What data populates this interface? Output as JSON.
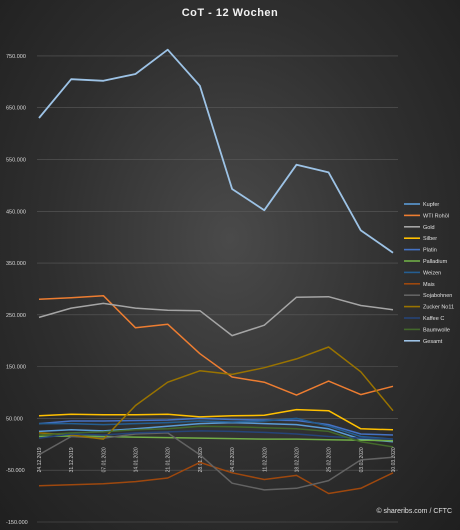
{
  "chart_data": {
    "type": "line",
    "title": "CoT - 12 Wochen",
    "credit": "© shareribs.com / CFTC",
    "ylim": [
      -150000,
      800000
    ],
    "yticks": [
      "750.000",
      "650.000",
      "550.000",
      "450.000",
      "350.000",
      "250.000",
      "150.000",
      "50.000",
      "-50.000",
      "-150.000"
    ],
    "ytick_values": [
      750000,
      650000,
      550000,
      450000,
      350000,
      250000,
      150000,
      50000,
      -50000,
      -150000
    ],
    "grid": true,
    "legend_position": "right",
    "x": [
      "24.12.2019",
      "31.12.2019",
      "07.01.2020",
      "14.01.2020",
      "21.01.2020",
      "28.01.2020",
      "04.02.2020",
      "11.02.2020",
      "18.02.2020",
      "25.02.2020",
      "03.03.2020",
      "10.03.2020"
    ],
    "series": [
      {
        "name": "Kupfer",
        "color": "#5b9bd5",
        "values": [
          25000,
          28000,
          26000,
          30000,
          35000,
          40000,
          42000,
          40000,
          38000,
          30000,
          10000,
          5000
        ]
      },
      {
        "name": "WTI Rohöl",
        "color": "#ed7d31",
        "values": [
          280000,
          283000,
          287000,
          225000,
          232000,
          175000,
          130000,
          120000,
          95000,
          122000,
          96000,
          112000
        ]
      },
      {
        "name": "Gold",
        "color": "#a5a5a5",
        "values": [
          245000,
          263000,
          272000,
          263000,
          259000,
          258000,
          210000,
          230000,
          284000,
          285000,
          268000,
          260000
        ]
      },
      {
        "name": "Silber",
        "color": "#ffc000",
        "values": [
          55000,
          58000,
          57000,
          57000,
          58000,
          53000,
          55000,
          56000,
          67000,
          65000,
          30000,
          28000
        ]
      },
      {
        "name": "Platin",
        "color": "#4472c4",
        "values": [
          40000,
          45000,
          45000,
          46000,
          47000,
          50000,
          48000,
          47000,
          46000,
          38000,
          20000,
          18000
        ]
      },
      {
        "name": "Palladium",
        "color": "#70ad47",
        "values": [
          15000,
          16000,
          15000,
          14000,
          13000,
          12000,
          11000,
          10000,
          10000,
          9000,
          8000,
          7000
        ]
      },
      {
        "name": "Weizen",
        "color": "#255e91",
        "values": [
          40000,
          40000,
          38000,
          40000,
          42000,
          45000,
          43000,
          45000,
          50000,
          35000,
          15000,
          10000
        ]
      },
      {
        "name": "Mais",
        "color": "#9e480e",
        "values": [
          -80000,
          -78000,
          -76000,
          -72000,
          -65000,
          -35000,
          -55000,
          -68000,
          -60000,
          -95000,
          -85000,
          -55000
        ]
      },
      {
        "name": "Sojabohnen",
        "color": "#636363",
        "values": [
          -20000,
          15000,
          12000,
          20000,
          22000,
          -20000,
          -75000,
          -88000,
          -85000,
          -70000,
          -30000,
          -25000
        ]
      },
      {
        "name": "Zucker No11",
        "color": "#997300",
        "values": [
          22000,
          18000,
          10000,
          75000,
          120000,
          142000,
          135000,
          148000,
          165000,
          188000,
          140000,
          65000
        ]
      },
      {
        "name": "Kaffee C",
        "color": "#264478",
        "values": [
          12000,
          20000,
          18000,
          22000,
          24000,
          26000,
          25000,
          23000,
          20000,
          15000,
          12000,
          10000
        ]
      },
      {
        "name": "Baumwolle",
        "color": "#43682b",
        "values": [
          18000,
          22000,
          24000,
          28000,
          30000,
          35000,
          34000,
          32000,
          30000,
          25000,
          5000,
          -5000
        ]
      },
      {
        "name": "Gesamt",
        "color": "#9dc3e6",
        "values": [
          630000,
          705000,
          702000,
          715000,
          762000,
          692000,
          493000,
          452000,
          540000,
          525000,
          413000,
          370000
        ]
      }
    ]
  }
}
